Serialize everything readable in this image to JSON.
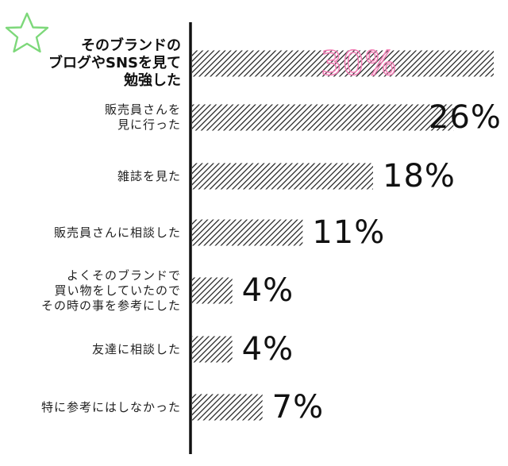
{
  "chart_data": {
    "type": "bar",
    "orientation": "horizontal",
    "categories": [
      "そのブランドの\nブログやSNSを見て\n勉強した",
      "販売員さんを\n見に行った",
      "雑誌を見た",
      "販売員さんに相談した",
      "よくそのブランドで\n買い物をしていたので\nその時の事を参考にした",
      "友達に相談した",
      "特に参考にはしなかった"
    ],
    "values": [
      30,
      26,
      18,
      11,
      4,
      4,
      7
    ],
    "value_labels": [
      "30%",
      "26%",
      "18%",
      "11%",
      "4%",
      "4%",
      "7%"
    ],
    "unit": "%",
    "xlim": [
      0,
      30
    ],
    "highlight_index": 0,
    "colors": {
      "bar_stripe": "#1a1a1a",
      "bar_bg": "#ffffff",
      "axis": "#111111",
      "highlight_text": "#f27fb6",
      "star": "#7dd87a"
    },
    "grid": false,
    "legend": "none"
  }
}
